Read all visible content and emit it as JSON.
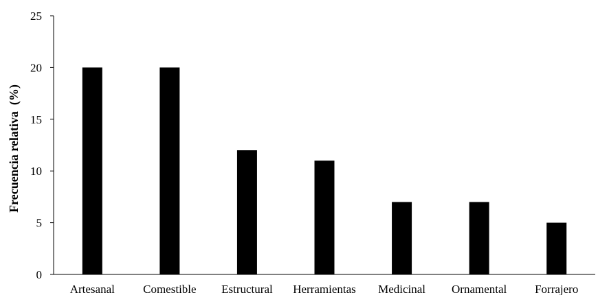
{
  "chart_data": {
    "type": "bar",
    "title": "",
    "xlabel": "",
    "ylabel": "Frecuencia relativa  (%)",
    "categories": [
      "Artesanal",
      "Comestible",
      "Estructural",
      "Herramientas",
      "Medicinal",
      "Ornamental",
      "Forrajero"
    ],
    "values": [
      20,
      20,
      12,
      11,
      7,
      7,
      5
    ],
    "ylim": [
      0,
      25
    ],
    "yticks": [
      0,
      5,
      10,
      15,
      20,
      25
    ],
    "grid": false,
    "legend": "none",
    "bar_color": "#000000",
    "axis_color": "#000000"
  }
}
